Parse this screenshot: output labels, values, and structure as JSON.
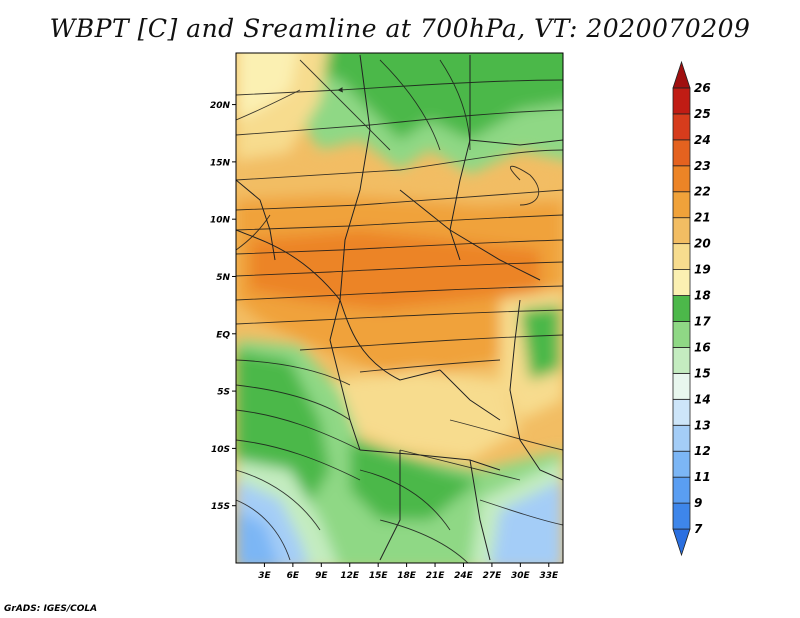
{
  "title": "WBPT [C] and Sreamline at 700hPa, VT: 2020070209",
  "footer": "GrADS: IGES/COLA",
  "map": {
    "lat_labels": [
      "20N",
      "15N",
      "10N",
      "5N",
      "EQ",
      "5S",
      "10S",
      "15S"
    ],
    "lon_labels": [
      "3E",
      "6E",
      "9E",
      "12E",
      "15E",
      "18E",
      "21E",
      "24E",
      "27E",
      "30E",
      "33E"
    ],
    "lat_values": [
      20,
      15,
      10,
      5,
      0,
      -5,
      -10,
      -15
    ],
    "lon_values": [
      3,
      6,
      9,
      12,
      15,
      18,
      21,
      24,
      27,
      30,
      33
    ],
    "lon_range": [
      0,
      34.5
    ],
    "lat_range": [
      -20,
      24.5
    ]
  },
  "colorbar": {
    "labels": [
      "7",
      "9",
      "11",
      "12",
      "13",
      "14",
      "15",
      "16",
      "17",
      "18",
      "19",
      "20",
      "21",
      "22",
      "23",
      "24",
      "25",
      "26"
    ],
    "colors": [
      "#2a6fe0",
      "#3e86ea",
      "#5a9ef2",
      "#7cb6f5",
      "#a4cdf7",
      "#cde5f9",
      "#e8f7ee",
      "#c4ecc0",
      "#8fd885",
      "#4cb84a",
      "#fbf0b2",
      "#f7dc8e",
      "#f2bd63",
      "#f0a23a",
      "#ec8426",
      "#e4621f",
      "#d63c1c",
      "#c01c14",
      "#a01010"
    ]
  }
}
